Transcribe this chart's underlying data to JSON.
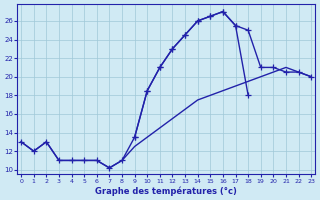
{
  "xlabel": "Graphe des températures (°c)",
  "xlim": [
    -0.3,
    23.3
  ],
  "ylim": [
    9.5,
    27.8
  ],
  "yticks": [
    10,
    12,
    14,
    16,
    18,
    20,
    22,
    24,
    26
  ],
  "xticks": [
    0,
    1,
    2,
    3,
    4,
    5,
    6,
    7,
    8,
    9,
    10,
    11,
    12,
    13,
    14,
    15,
    16,
    17,
    18,
    19,
    20,
    21,
    22,
    23
  ],
  "bg_color": "#d0eaf4",
  "grid_color": "#a0c8d8",
  "line_color": "#2222aa",
  "curve_upper": {
    "x": [
      0,
      1,
      2,
      3,
      4,
      5,
      6,
      7,
      8,
      9,
      10,
      11,
      12,
      13,
      14,
      15,
      16,
      17,
      18
    ],
    "y": [
      13,
      12,
      13,
      11,
      11,
      11,
      11,
      10.2,
      11,
      13.5,
      18.5,
      21,
      23,
      24.5,
      26,
      26.5,
      27,
      25.5,
      18
    ]
  },
  "curve_middle": {
    "x": [
      9,
      10,
      11,
      12,
      13,
      14,
      15,
      16,
      17,
      18,
      19,
      20,
      21,
      22,
      23
    ],
    "y": [
      13.5,
      18.5,
      21,
      23,
      24.5,
      26,
      26.5,
      27,
      25.5,
      25,
      21,
      21,
      20.5,
      20.5,
      20
    ]
  },
  "curve_lower": {
    "x": [
      0,
      1,
      2,
      3,
      4,
      5,
      6,
      7,
      8,
      9,
      10,
      11,
      12,
      13,
      14,
      15,
      16,
      17,
      18,
      19,
      20,
      21,
      22,
      23
    ],
    "y": [
      13,
      12,
      13,
      11,
      11,
      11,
      11,
      10.2,
      11,
      12.5,
      13.5,
      14.5,
      15.5,
      16.5,
      17.5,
      18,
      18.5,
      19,
      19.5,
      20,
      20.5,
      21,
      20.5,
      20
    ]
  }
}
